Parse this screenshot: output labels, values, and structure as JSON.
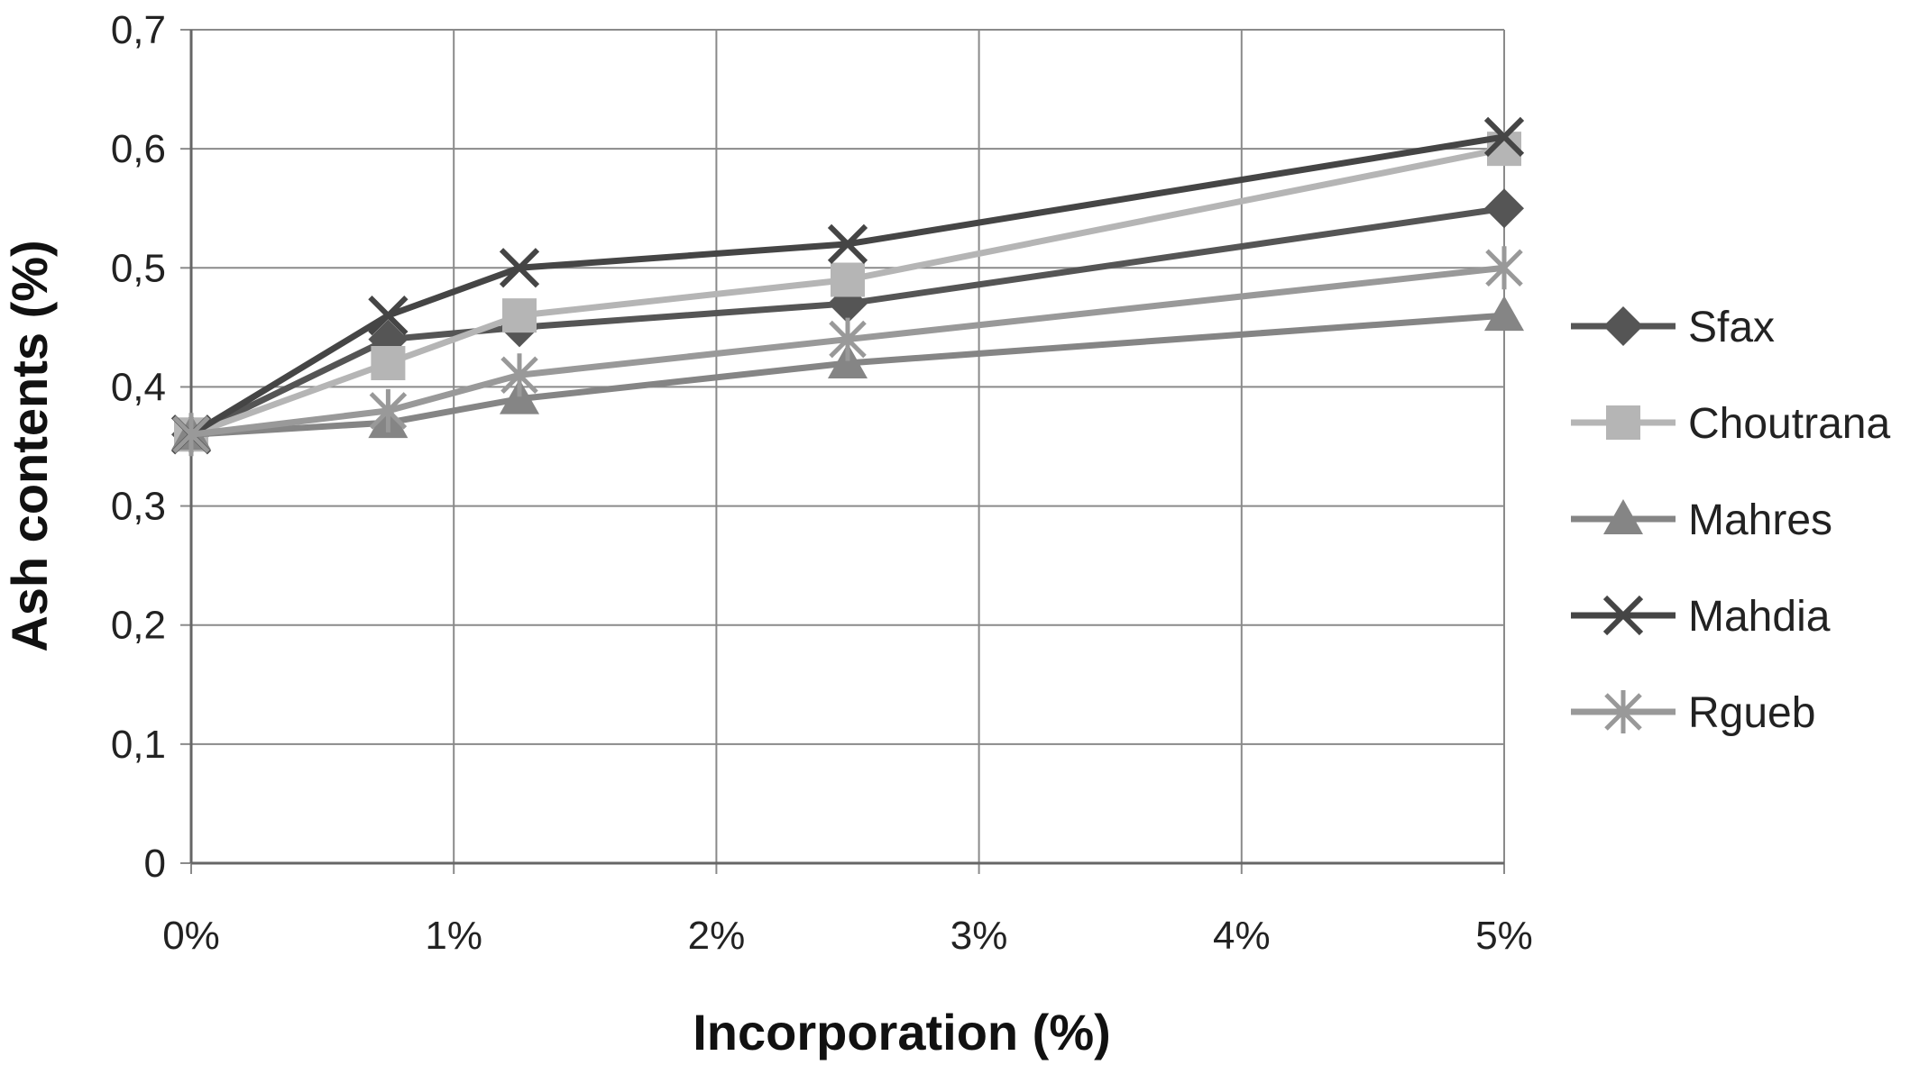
{
  "chart_data": {
    "type": "line",
    "xlabel": "Incorporation (%)",
    "ylabel": "Ash contents (%)",
    "x_ticks": [
      "0%",
      "1%",
      "2%",
      "3%",
      "4%",
      "5%"
    ],
    "y_ticks": [
      "0",
      "0,1",
      "0,2",
      "0,3",
      "0,4",
      "0,5",
      "0,6",
      "0,7"
    ],
    "xlim": [
      0,
      5
    ],
    "ylim": [
      0,
      0.7
    ],
    "grid": true,
    "legend_position": "right",
    "series": [
      {
        "name": "Sfax",
        "marker": "diamond",
        "color": "#555555",
        "x": [
          0,
          0.75,
          1.25,
          2.5,
          5
        ],
        "y": [
          0.36,
          0.44,
          0.45,
          0.47,
          0.55
        ]
      },
      {
        "name": "Choutrana",
        "marker": "square",
        "color": "#b5b5b5",
        "x": [
          0,
          0.75,
          1.25,
          2.5,
          5
        ],
        "y": [
          0.36,
          0.42,
          0.46,
          0.49,
          0.6
        ]
      },
      {
        "name": "Mahres",
        "marker": "triangle",
        "color": "#858585",
        "x": [
          0,
          0.75,
          1.25,
          2.5,
          5
        ],
        "y": [
          0.36,
          0.37,
          0.39,
          0.42,
          0.46
        ]
      },
      {
        "name": "Mahdia",
        "marker": "x",
        "color": "#454545",
        "x": [
          0,
          0.75,
          1.25,
          2.5,
          5
        ],
        "y": [
          0.36,
          0.46,
          0.5,
          0.52,
          0.61
        ]
      },
      {
        "name": "Rgueb",
        "marker": "star",
        "color": "#999999",
        "x": [
          0,
          0.75,
          1.25,
          2.5,
          5
        ],
        "y": [
          0.36,
          0.38,
          0.41,
          0.44,
          0.5
        ]
      }
    ]
  }
}
